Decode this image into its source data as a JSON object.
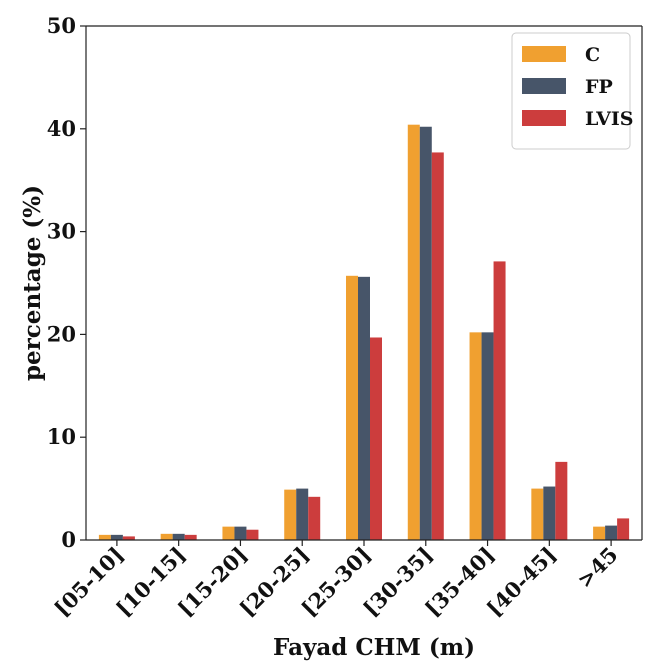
{
  "chart_data": {
    "type": "bar",
    "title": "",
    "xlabel": "Fayad CHM (m)",
    "ylabel": "percentage (%)",
    "ylim": [
      0,
      50
    ],
    "yticks": [
      0,
      10,
      20,
      30,
      40,
      50
    ],
    "grid": false,
    "legend_position": "top-right",
    "categories": [
      "[05-10]",
      "[10-15]",
      "[15-20]",
      "[20-25]",
      "[25-30]",
      "[30-35]",
      "[35-40]",
      "[40-45]",
      ">45"
    ],
    "series": [
      {
        "name": "C",
        "color": "#f0a030",
        "values": [
          0.5,
          0.6,
          1.3,
          4.9,
          25.7,
          40.4,
          20.2,
          5.0,
          1.3
        ]
      },
      {
        "name": "FP",
        "color": "#475569",
        "values": [
          0.5,
          0.6,
          1.3,
          5.0,
          25.6,
          40.2,
          20.2,
          5.2,
          1.4
        ]
      },
      {
        "name": "LVIS",
        "color": "#cc3d3d",
        "values": [
          0.35,
          0.5,
          1.0,
          4.2,
          19.7,
          37.7,
          27.1,
          7.6,
          2.1
        ]
      }
    ]
  }
}
